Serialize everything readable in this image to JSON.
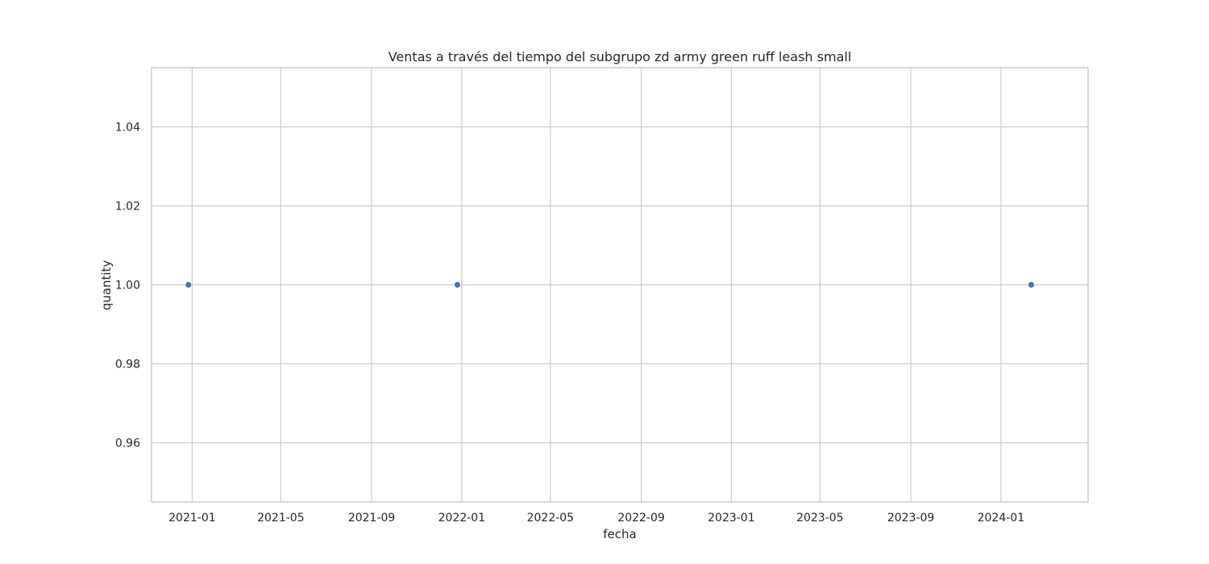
{
  "chart_data": {
    "type": "scatter",
    "title": "Ventas a través del tiempo del subgrupo zd army green ruff leash small",
    "xlabel": "fecha",
    "ylabel": "quantity",
    "x_type": "date",
    "xlim": [
      "2020-11-07",
      "2024-04-28"
    ],
    "ylim": [
      0.945,
      1.055
    ],
    "x_ticks": [
      "2021-01",
      "2021-05",
      "2021-09",
      "2022-01",
      "2022-05",
      "2022-09",
      "2023-01",
      "2023-05",
      "2023-09",
      "2024-01"
    ],
    "y_ticks": [
      0.96,
      0.98,
      1.0,
      1.02,
      1.04
    ],
    "y_tick_labels": [
      "0.96",
      "0.98",
      "1.00",
      "1.02",
      "1.04"
    ],
    "grid": true,
    "series": [
      {
        "color": "#4c72b0",
        "points": [
          {
            "x": "2020-12-27",
            "y": 1.0
          },
          {
            "x": "2021-12-26",
            "y": 1.0
          },
          {
            "x": "2024-02-11",
            "y": 1.0
          }
        ]
      }
    ]
  }
}
